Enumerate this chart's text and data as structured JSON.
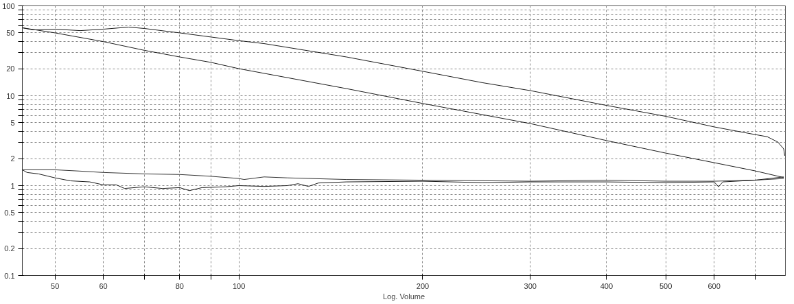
{
  "chart_data": {
    "type": "line",
    "xlabel": "Log. Volume",
    "log": "xy",
    "grid": true,
    "marker": "none",
    "line_style": "solid",
    "xlim": [
      44.2,
      785
    ],
    "ylim": [
      0.1,
      100
    ],
    "xticks": [
      50,
      60,
      {
        "value": 70,
        "label": null
      },
      80,
      {
        "value": 90,
        "label": null
      },
      100,
      200,
      300,
      400,
      500,
      600,
      {
        "value": 700,
        "label": null
      }
    ],
    "yticks": [
      0.1,
      0.2,
      {
        "value": 0.3,
        "label": null
      },
      {
        "value": 0.4,
        "label": null
      },
      0.5,
      {
        "value": 0.6,
        "label": null
      },
      {
        "value": 0.7,
        "label": null
      },
      {
        "value": 0.8,
        "label": null
      },
      {
        "value": 0.9,
        "label": null
      },
      1,
      2,
      {
        "value": 3,
        "label": null
      },
      {
        "value": 4,
        "label": null
      },
      5,
      {
        "value": 6,
        "label": null
      },
      {
        "value": 7,
        "label": null
      },
      {
        "value": 8,
        "label": null
      },
      {
        "value": 9,
        "label": null
      },
      10,
      20,
      {
        "value": 30,
        "label": null
      },
      {
        "value": 40,
        "label": null
      },
      50,
      {
        "value": 60,
        "label": null
      },
      {
        "value": 70,
        "label": null
      },
      {
        "value": 80,
        "label": null
      },
      {
        "value": 90,
        "label": null
      },
      100
    ],
    "series": [
      {
        "color": "#1a1a1a",
        "x": [
          44.2,
          46,
          50,
          55,
          60,
          66,
          70,
          80,
          90,
          100,
          110,
          150,
          200,
          250,
          300,
          400,
          500,
          600,
          700,
          733,
          763,
          780,
          783
        ],
        "values": [
          57,
          54,
          55,
          53,
          55,
          58,
          56,
          50,
          45,
          41,
          38,
          27,
          18.7,
          14,
          11.4,
          7.8,
          5.9,
          4.5,
          3.7,
          3.5,
          3.05,
          2.56,
          2.15
        ]
      },
      {
        "color": "#1a1a1a",
        "x": [
          44.2,
          50,
          60,
          70,
          80,
          90,
          100,
          150,
          200,
          300,
          400,
          500,
          600,
          700,
          780
        ],
        "values": [
          57,
          50,
          40,
          32,
          27,
          23.5,
          20,
          12,
          8.2,
          4.9,
          3.17,
          2.3,
          1.8,
          1.46,
          1.23
        ]
      },
      {
        "color": "#333333",
        "x": [
          44.2,
          50,
          55,
          60,
          70,
          80,
          90,
          100,
          102,
          110,
          120,
          150,
          200,
          300,
          400,
          500,
          600,
          700,
          780
        ],
        "values": [
          1.5,
          1.5,
          1.45,
          1.4,
          1.35,
          1.33,
          1.27,
          1.2,
          1.17,
          1.25,
          1.22,
          1.17,
          1.15,
          1.12,
          1.15,
          1.12,
          1.12,
          1.15,
          1.2
        ]
      },
      {
        "color": "#1a1a1a",
        "x": [
          44.2,
          45,
          47,
          50,
          53,
          57,
          60,
          63,
          65,
          70,
          75,
          80,
          83,
          87,
          95,
          100,
          110,
          120,
          125,
          130,
          135,
          150,
          200,
          250,
          300,
          400,
          500,
          600,
          610,
          620,
          700,
          780
        ],
        "values": [
          1.5,
          1.4,
          1.35,
          1.22,
          1.13,
          1.1,
          1.02,
          1.02,
          0.93,
          0.97,
          0.93,
          0.95,
          0.88,
          0.95,
          0.97,
          1.0,
          0.98,
          1.0,
          1.05,
          0.98,
          1.07,
          1.1,
          1.12,
          1.08,
          1.1,
          1.1,
          1.08,
          1.1,
          0.97,
          1.1,
          1.15,
          1.25
        ]
      }
    ]
  }
}
